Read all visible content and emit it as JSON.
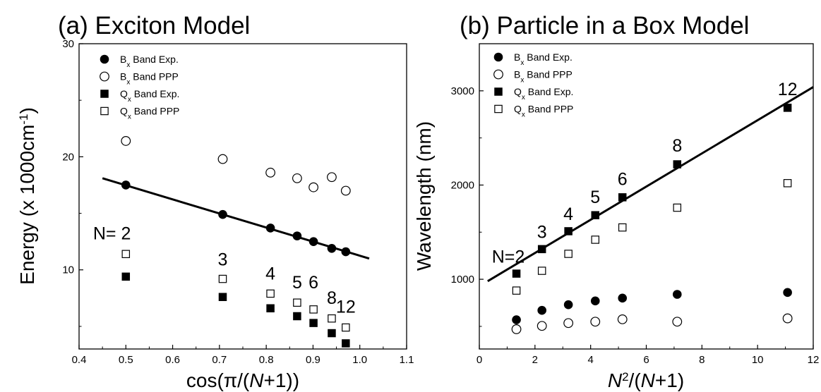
{
  "chart_data": [
    {
      "type": "scatter",
      "title": "(a) Exciton Model",
      "xlabel_parts": [
        "cos(π/(",
        "N",
        "+1))"
      ],
      "ylabel": "Energy (x 1000cm",
      "ylabel_sup": "-1",
      "ylabel_close": ")",
      "xlim": [
        0.4,
        1.1
      ],
      "ylim": [
        3,
        30
      ],
      "xticks": [
        0.4,
        0.5,
        0.6,
        0.7,
        0.8,
        0.9,
        1.0,
        1.1
      ],
      "xtick_labels": [
        "0.4",
        "0.5",
        "0.6",
        "0.7",
        "0.8",
        "0.9",
        "1.0",
        "1.1"
      ],
      "yticks": [
        10,
        20,
        30
      ],
      "ytick_labels": [
        "10",
        "20",
        "30"
      ],
      "legend_position": "top-left",
      "series": [
        {
          "legend": [
            "B",
            "x",
            " Band Exp."
          ],
          "marker": "filled-circle",
          "x": [
            0.5,
            0.707,
            0.809,
            0.866,
            0.901,
            0.94,
            0.97
          ],
          "y": [
            17.5,
            14.9,
            13.7,
            13.0,
            12.5,
            11.9,
            11.6
          ]
        },
        {
          "legend": [
            "B",
            "x",
            " Band PPP"
          ],
          "marker": "open-circle",
          "x": [
            0.5,
            0.707,
            0.809,
            0.866,
            0.901,
            0.94,
            0.97
          ],
          "y": [
            21.4,
            19.8,
            18.6,
            18.1,
            17.3,
            18.2,
            17.0
          ]
        },
        {
          "legend": [
            "Q",
            "x",
            " Band Exp."
          ],
          "marker": "filled-square",
          "x": [
            0.5,
            0.707,
            0.809,
            0.866,
            0.901,
            0.94,
            0.97
          ],
          "y": [
            9.4,
            7.6,
            6.6,
            5.9,
            5.3,
            4.4,
            3.5
          ]
        },
        {
          "legend": [
            "Q",
            "x",
            " Band PPP"
          ],
          "marker": "open-square",
          "x": [
            0.5,
            0.707,
            0.809,
            0.866,
            0.901,
            0.94,
            0.97
          ],
          "y": [
            11.4,
            9.2,
            7.9,
            7.1,
            6.5,
            5.7,
            4.9
          ]
        }
      ],
      "fit_line": {
        "x": [
          0.45,
          1.02
        ],
        "y": [
          18.1,
          11.0
        ]
      },
      "annotations": [
        {
          "text": "N= 2",
          "x": 0.43,
          "y": 12.7
        },
        {
          "text": "3",
          "x": 0.707,
          "y": 10.4
        },
        {
          "text": "4",
          "x": 0.809,
          "y": 9.15
        },
        {
          "text": "5",
          "x": 0.866,
          "y": 8.35
        },
        {
          "text": "6",
          "x": 0.901,
          "y": 8.35
        },
        {
          "text": "8",
          "x": 0.94,
          "y": 7.0
        },
        {
          "text": "12",
          "x": 0.97,
          "y": 6.2
        }
      ]
    },
    {
      "type": "scatter",
      "title": "(b) Particle in a Box Model",
      "xlabel_parts": [
        "N",
        "2",
        "/(",
        "N",
        "+1)"
      ],
      "ylabel": "Wavelength (nm)",
      "xlim": [
        0,
        12
      ],
      "ylim": [
        260,
        3500
      ],
      "xticks": [
        0,
        2,
        4,
        6,
        8,
        10,
        12
      ],
      "xtick_labels": [
        "0",
        "2",
        "4",
        "6",
        "8",
        "10",
        "12"
      ],
      "yticks": [
        1000,
        2000,
        3000
      ],
      "ytick_labels": [
        "1000",
        "2000",
        "3000"
      ],
      "legend_position": "top-left",
      "series": [
        {
          "legend": [
            "B",
            "x",
            " Band Exp."
          ],
          "marker": "filled-circle",
          "x": [
            1.333,
            2.25,
            3.2,
            4.167,
            5.143,
            7.111,
            11.077
          ],
          "y": [
            570,
            670,
            730,
            770,
            800,
            840,
            860
          ]
        },
        {
          "legend": [
            "B",
            "x",
            " Band PPP"
          ],
          "marker": "open-circle",
          "x": [
            1.333,
            2.25,
            3.2,
            4.167,
            5.143,
            7.111,
            11.077
          ],
          "y": [
            470,
            505,
            535,
            550,
            575,
            550,
            585
          ]
        },
        {
          "legend": [
            "Q",
            "x",
            " Band Exp."
          ],
          "marker": "filled-square",
          "x": [
            1.333,
            2.25,
            3.2,
            4.167,
            5.143,
            7.111,
            11.077
          ],
          "y": [
            1060,
            1320,
            1510,
            1680,
            1870,
            2220,
            2820
          ]
        },
        {
          "legend": [
            "Q",
            "x",
            " Band PPP"
          ],
          "marker": "open-square",
          "x": [
            1.333,
            2.25,
            3.2,
            4.167,
            5.143,
            7.111,
            11.077
          ],
          "y": [
            880,
            1090,
            1270,
            1420,
            1550,
            1760,
            2020
          ]
        }
      ],
      "fit_line": {
        "x": [
          0.3,
          12.0
        ],
        "y": [
          980,
          3040
        ]
      },
      "annotations": [
        {
          "text": "N=2",
          "x": 0.45,
          "y": 1175
        },
        {
          "text": "3",
          "x": 2.25,
          "y": 1440
        },
        {
          "text": "4",
          "x": 3.2,
          "y": 1630
        },
        {
          "text": "5",
          "x": 4.167,
          "y": 1810
        },
        {
          "text": "6",
          "x": 5.143,
          "y": 2000
        },
        {
          "text": "8",
          "x": 7.111,
          "y": 2355
        },
        {
          "text": "12",
          "x": 11.077,
          "y": 2955
        }
      ]
    }
  ]
}
